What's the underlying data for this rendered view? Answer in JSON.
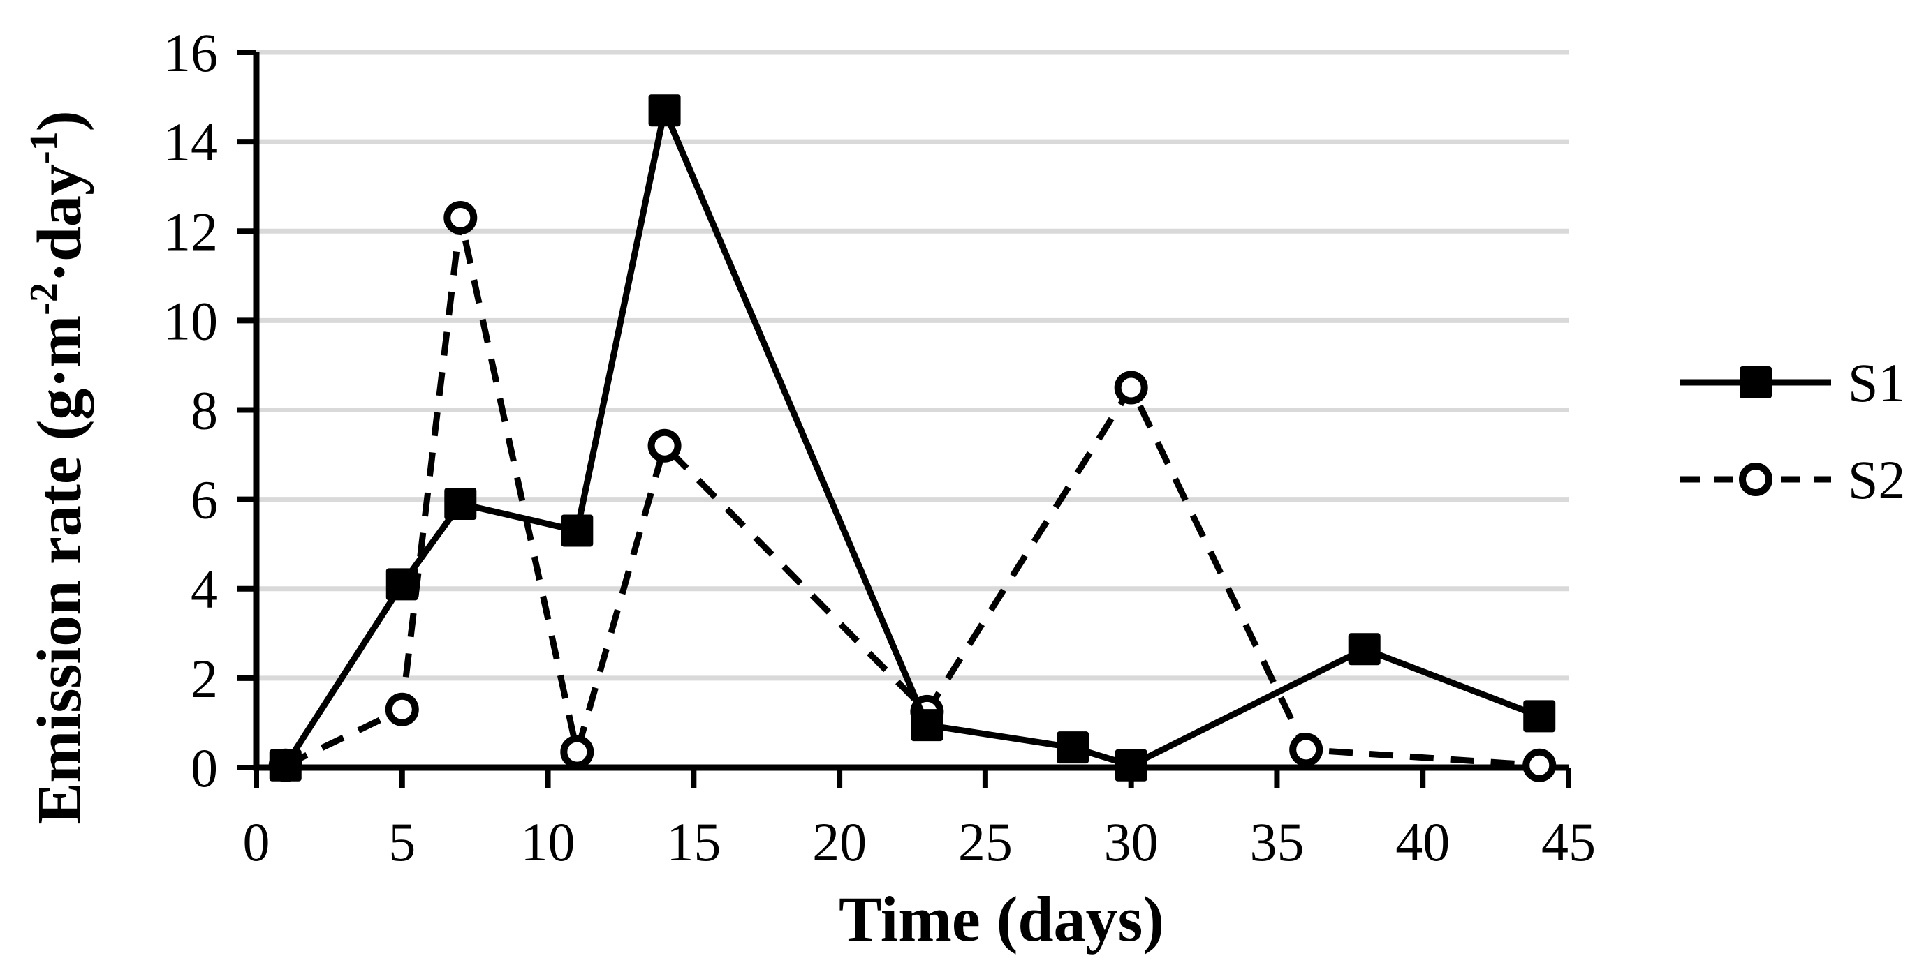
{
  "chart_data": {
    "type": "line",
    "title": "",
    "xlabel": "Time (days)",
    "ylabel": "Emission rate (g·m⁻²·day⁻¹)",
    "ylabel_parts": [
      {
        "text": "Emission rate (g·m",
        "sup": false
      },
      {
        "text": "-2",
        "sup": true
      },
      {
        "text": "·day",
        "sup": false
      },
      {
        "text": "-1",
        "sup": true
      },
      {
        "text": ")",
        "sup": false
      }
    ],
    "x_axis": {
      "min": 0,
      "max": 45,
      "tick_step": 5,
      "tick_labels": [
        "0",
        "5",
        "10",
        "15",
        "20",
        "25",
        "30",
        "35",
        "40",
        "45"
      ]
    },
    "y_axis": {
      "min": 0,
      "max": 16,
      "tick_step": 2,
      "tick_labels": [
        "0",
        "2",
        "4",
        "6",
        "8",
        "10",
        "12",
        "14",
        "16"
      ]
    },
    "grid": "horizontal-only",
    "legend": {
      "position": "right-center",
      "entries": [
        "S1",
        "S2"
      ]
    },
    "series": [
      {
        "name": "S1",
        "line": "solid",
        "marker": "filled-square",
        "color": "#000000",
        "points": [
          [
            1,
            0.05
          ],
          [
            5,
            4.1
          ],
          [
            7,
            5.9
          ],
          [
            11,
            5.3
          ],
          [
            14,
            14.7
          ],
          [
            23,
            0.95
          ],
          [
            28,
            0.45
          ],
          [
            30,
            0.05
          ],
          [
            38,
            2.65
          ],
          [
            44,
            1.15
          ]
        ]
      },
      {
        "name": "S2",
        "line": "dashed",
        "marker": "open-circle",
        "color": "#000000",
        "points": [
          [
            1,
            0.05
          ],
          [
            5,
            1.3
          ],
          [
            7,
            12.3
          ],
          [
            11,
            0.35
          ],
          [
            14,
            7.2
          ],
          [
            23,
            1.25
          ],
          [
            30,
            8.5
          ],
          [
            36,
            0.4
          ],
          [
            44,
            0.05
          ]
        ]
      }
    ],
    "colors": {
      "series": "#000000",
      "gridline": "#D9D9D9",
      "background": "#FFFFFF"
    }
  }
}
